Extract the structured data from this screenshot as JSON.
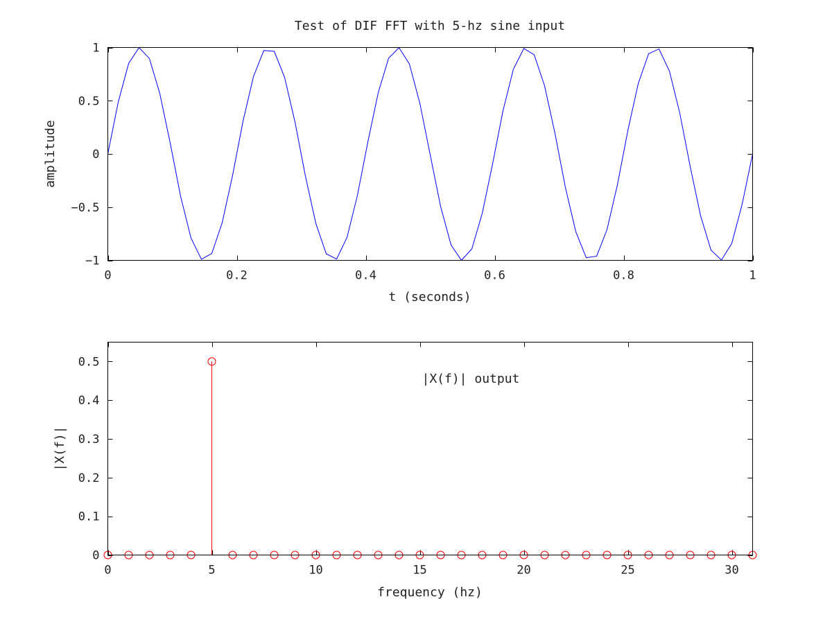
{
  "chart_data": [
    {
      "type": "line",
      "title": "Test of DIF FFT with 5-hz sine input",
      "xlabel": "t (seconds)",
      "ylabel": "amplitude",
      "xlim": [
        0,
        1
      ],
      "ylim": [
        -1,
        1
      ],
      "grid": false,
      "x_ticks": [
        0,
        0.2,
        0.4,
        0.6,
        0.8,
        1
      ],
      "x_tick_labels": [
        "0",
        "0.2",
        "0.4",
        "0.6",
        "0.8",
        "1"
      ],
      "y_ticks": [
        -1,
        -0.5,
        0,
        0.5,
        1
      ],
      "y_tick_labels": [
        "−1",
        "−0.5",
        "0",
        "0.5",
        "1"
      ],
      "series": [
        {
          "color": "#0000ff",
          "x": [
            0,
            0.0161,
            0.0323,
            0.0484,
            0.0645,
            0.0806,
            0.0968,
            0.1129,
            0.129,
            0.1452,
            0.1613,
            0.1774,
            0.1935,
            0.2097,
            0.2258,
            0.2419,
            0.2581,
            0.2742,
            0.2903,
            0.3065,
            0.3226,
            0.3387,
            0.3548,
            0.371,
            0.3871,
            0.4032,
            0.4194,
            0.4355,
            0.4516,
            0.4677,
            0.4839,
            0.5,
            0.5161,
            0.5323,
            0.5484,
            0.5645,
            0.5806,
            0.5968,
            0.6129,
            0.629,
            0.6452,
            0.6613,
            0.6774,
            0.6935,
            0.7097,
            0.7258,
            0.7419,
            0.7581,
            0.7742,
            0.7903,
            0.8065,
            0.8226,
            0.8387,
            0.8548,
            0.871,
            0.8871,
            0.9032,
            0.9194,
            0.9355,
            0.9516,
            0.9677,
            0.9839,
            1
          ],
          "y": [
            0,
            0.4853,
            0.8502,
            0.9989,
            0.8968,
            0.5681,
            0.1012,
            -0.3984,
            -0.7907,
            -0.9898,
            -0.9349,
            -0.6458,
            -0.2013,
            0.3079,
            0.7248,
            0.9718,
            0.9641,
            0.7181,
            0.2994,
            -0.21,
            -0.6529,
            -0.938,
            -0.988,
            -0.784,
            -0.3905,
            0.1101,
            0.5758,
            0.9,
            0.9982,
            0.8453,
            0.4776,
            -0.0091,
            -0.4934,
            -0.8551,
            -0.9993,
            -0.893,
            -0.5603,
            -0.0922,
            0.4063,
            0.796,
            0.9912,
            0.9313,
            0.6387,
            0.1924,
            -0.3165,
            -0.7312,
            -0.9743,
            -0.9613,
            -0.7111,
            -0.2909,
            0.219,
            0.6603,
            0.9416,
            0.9863,
            0.7778,
            0.3824,
            -0.1191,
            -0.5832,
            -0.904,
            -0.9976,
            -0.8404,
            -0.4698,
            0
          ]
        }
      ]
    },
    {
      "type": "stem",
      "title": "",
      "xlabel": "frequency (hz)",
      "ylabel": "|X(f)|",
      "xlim": [
        0,
        31
      ],
      "ylim": [
        0,
        0.55
      ],
      "grid": false,
      "annotation": {
        "text": "|X(f)| output",
        "x": 15.1,
        "y": 0.445
      },
      "x_ticks": [
        0,
        5,
        10,
        15,
        20,
        25,
        30
      ],
      "x_tick_labels": [
        "0",
        "5",
        "10",
        "15",
        "20",
        "25",
        "30"
      ],
      "y_ticks": [
        0,
        0.1,
        0.2,
        0.3,
        0.4,
        0.5
      ],
      "y_tick_labels": [
        "0",
        "0.1",
        "0.2",
        "0.3",
        "0.4",
        "0.5"
      ],
      "series": [
        {
          "color": "#ff0000",
          "marker": "circle-open",
          "x": [
            0,
            1,
            2,
            3,
            4,
            5,
            6,
            7,
            8,
            9,
            10,
            11,
            12,
            13,
            14,
            15,
            16,
            17,
            18,
            19,
            20,
            21,
            22,
            23,
            24,
            25,
            26,
            27,
            28,
            29,
            30,
            31
          ],
          "y": [
            0,
            0,
            0,
            0,
            0,
            0.5,
            0,
            0,
            0,
            0,
            0,
            0,
            0,
            0,
            0,
            0,
            0,
            0,
            0,
            0,
            0,
            0,
            0,
            0,
            0,
            0,
            0,
            0,
            0,
            0,
            0,
            0
          ]
        }
      ]
    }
  ]
}
